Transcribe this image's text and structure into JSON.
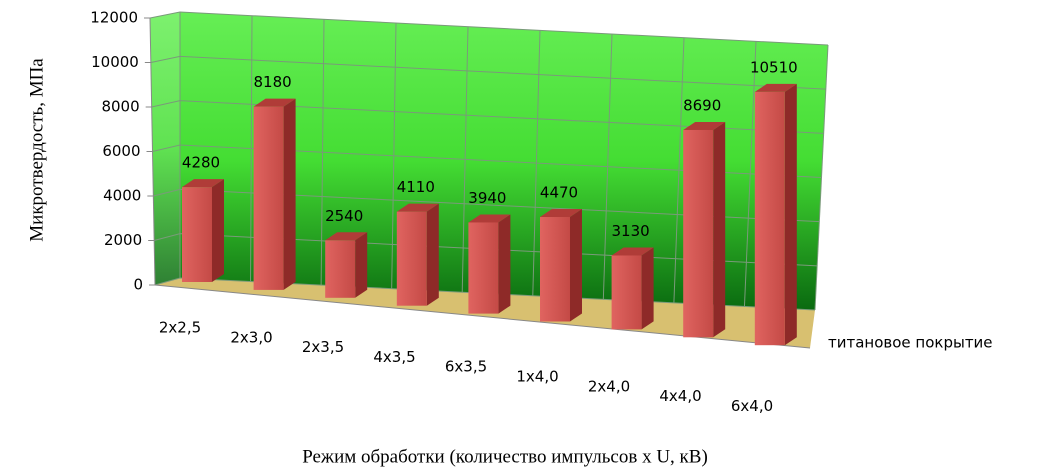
{
  "chart_data": {
    "type": "bar3d",
    "ylabel": "Микротвердость, МПа",
    "xlabel": "Режим обработки (количество импульсов x U, кВ)",
    "categories": [
      "2x2,5",
      "2x3,0",
      "2x3,5",
      "4x3,5",
      "6x3,5",
      "1x4,0",
      "2x4,0",
      "4x4,0",
      "6x4,0"
    ],
    "series": [
      {
        "name": "титановое покрытие",
        "color": "#c0504d",
        "values": [
          4280,
          8180,
          2540,
          4110,
          3940,
          4470,
          3130,
          8690,
          10510
        ]
      }
    ],
    "ylim": [
      0,
      12000
    ],
    "yticks": [
      0,
      2000,
      4000,
      6000,
      8000,
      10000,
      12000
    ],
    "grid": true
  }
}
